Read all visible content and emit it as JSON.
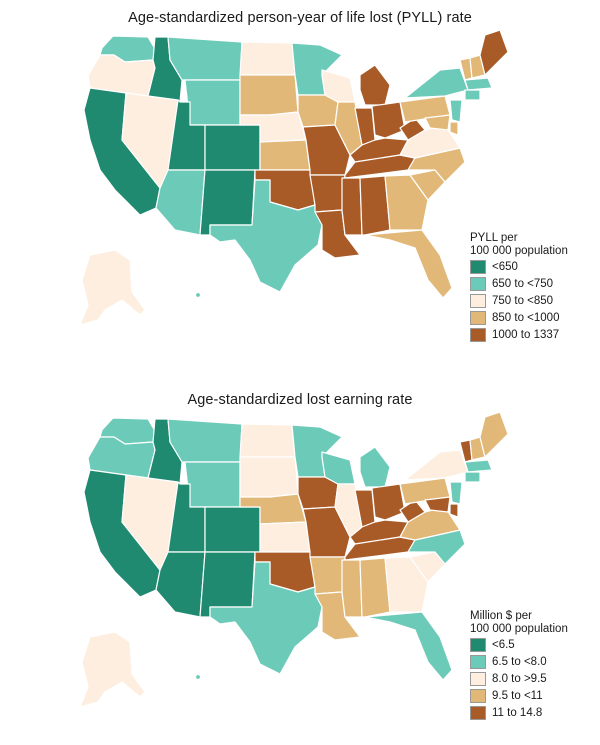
{
  "maps": [
    {
      "title": "Age-standardized person-year of life lost (PYLL) rate",
      "legend": {
        "title_line1": "PYLL per",
        "title_line2": "100 000 population",
        "items": [
          {
            "label": "<650",
            "color": "#1f8a6f"
          },
          {
            "label": "650 to <750",
            "color": "#6ccab9"
          },
          {
            "label": "750 to <850",
            "color": "#fdeee0"
          },
          {
            "label": "850 to <1000",
            "color": "#e2b878"
          },
          {
            "label": "1000 to 1337",
            "color": "#a95b27"
          }
        ]
      },
      "states": {
        "WA": 1,
        "OR": 2,
        "CA": 0,
        "ID": 0,
        "NV": 2,
        "MT": 1,
        "WY": 1,
        "UT": 0,
        "AZ": 1,
        "CO": 0,
        "NM": 0,
        "ND": 2,
        "SD": 3,
        "NE": 2,
        "KS": 3,
        "OK": 4,
        "TX": 1,
        "MN": 1,
        "IA": 3,
        "MO": 4,
        "AR": 4,
        "LA": 4,
        "WI": 2,
        "IL": 3,
        "MI": 4,
        "IN": 4,
        "OH": 4,
        "KY": 4,
        "TN": 4,
        "MS": 4,
        "AL": 4,
        "GA": 3,
        "FL": 3,
        "SC": 3,
        "NC": 3,
        "VA": 2,
        "WV": 4,
        "PA": 3,
        "NY": 1,
        "VT": 3,
        "NH": 3,
        "ME": 4,
        "MA": 1,
        "CT": 1,
        "NJ": 1,
        "DE": 3,
        "MD": 3,
        "AK": 2,
        "HI": 1
      }
    },
    {
      "title": "Age-standardized lost earning rate",
      "legend": {
        "title_line1": "Million $ per",
        "title_line2": "100 000 population",
        "items": [
          {
            "label": "<6.5",
            "color": "#1f8a6f"
          },
          {
            "label": "6.5 to <8.0",
            "color": "#6ccab9"
          },
          {
            "label": "8.0 to >9.5",
            "color": "#fdeee0"
          },
          {
            "label": "9.5 to <11",
            "color": "#e2b878"
          },
          {
            "label": "11 to 14.8",
            "color": "#a95b27"
          }
        ]
      },
      "states": {
        "WA": 1,
        "OR": 1,
        "CA": 0,
        "ID": 0,
        "NV": 2,
        "MT": 1,
        "WY": 1,
        "UT": 0,
        "AZ": 0,
        "CO": 0,
        "NM": 0,
        "ND": 2,
        "SD": 2,
        "NE": 3,
        "KS": 2,
        "OK": 4,
        "TX": 1,
        "MN": 1,
        "IA": 4,
        "MO": 4,
        "AR": 3,
        "LA": 3,
        "WI": 1,
        "IL": 2,
        "MI": 1,
        "IN": 4,
        "OH": 4,
        "KY": 4,
        "TN": 4,
        "MS": 3,
        "AL": 3,
        "GA": 2,
        "FL": 1,
        "SC": 2,
        "NC": 1,
        "VA": 3,
        "WV": 4,
        "PA": 3,
        "NY": 2,
        "VT": 4,
        "NH": 3,
        "ME": 3,
        "MA": 1,
        "CT": 1,
        "NJ": 1,
        "DE": 4,
        "MD": 4,
        "AK": 2,
        "HI": 1
      }
    }
  ]
}
